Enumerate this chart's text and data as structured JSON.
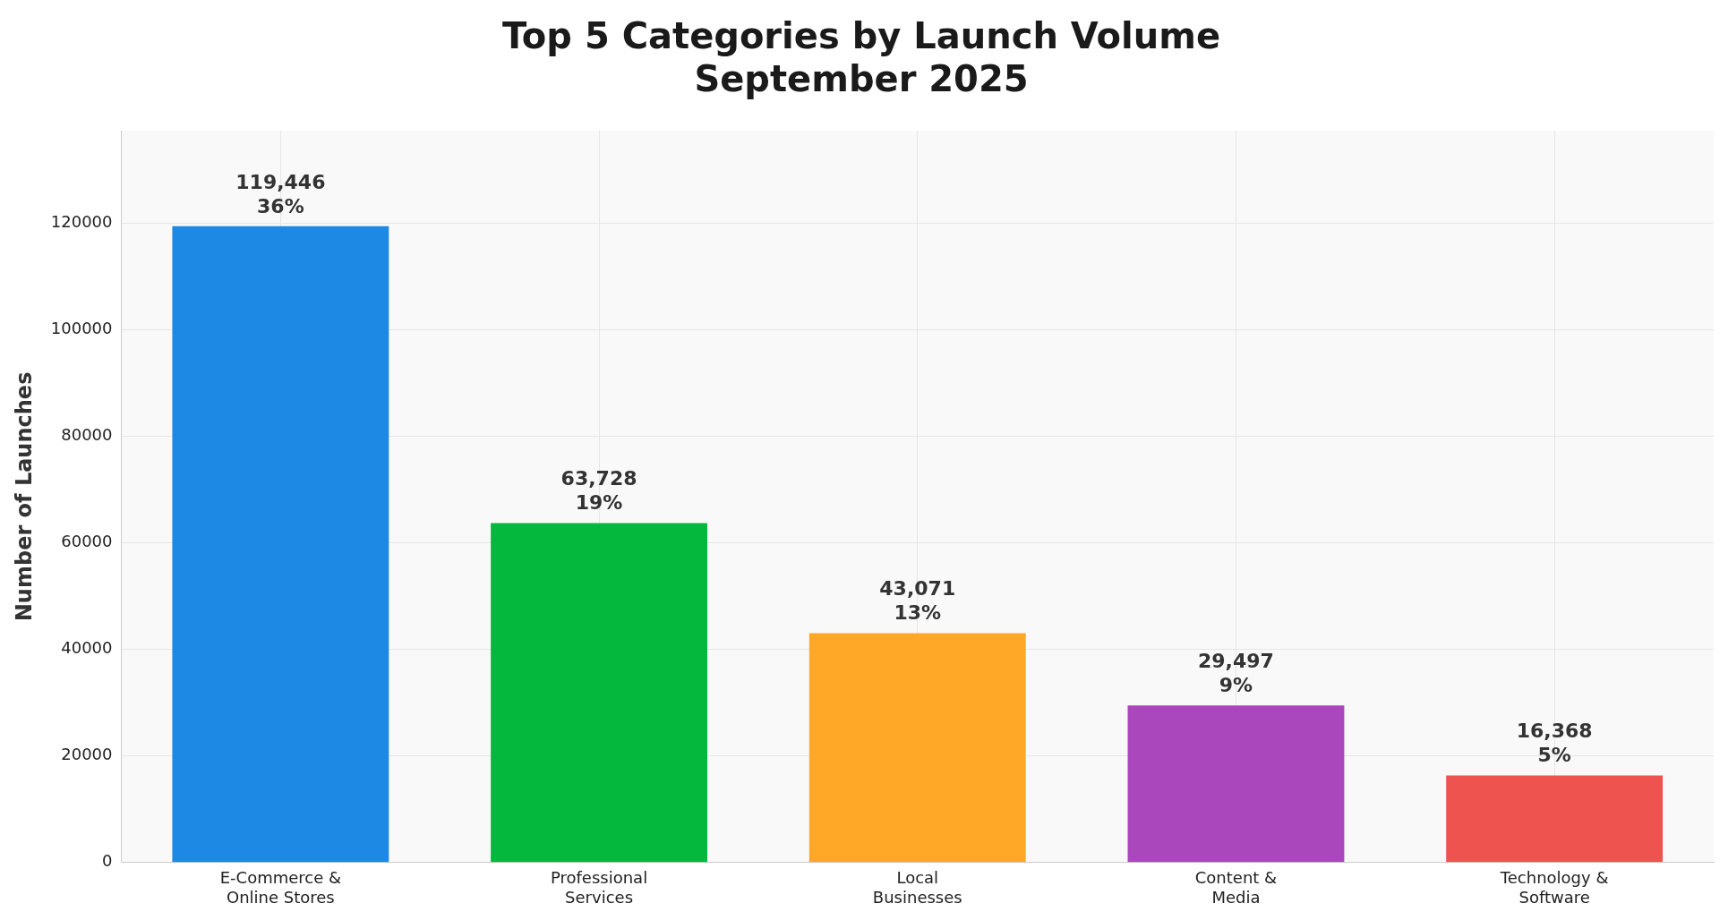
{
  "chart_data": {
    "type": "bar",
    "title": "Top 5 Categories by Launch Volume\nSeptember 2025",
    "ylabel": "Number of Launches",
    "categories": [
      "E-Commerce &\nOnline Stores",
      "Professional\nServices",
      "Local\nBusinesses",
      "Content &\nMedia",
      "Technology &\nSoftware"
    ],
    "values": [
      119446,
      63728,
      43071,
      29497,
      16368
    ],
    "colors": [
      "#1e88e5",
      "#04b83e",
      "#ffa726",
      "#ab47bc",
      "#ef5350"
    ],
    "value_labels": [
      "119,446\n36%",
      "63,728\n19%",
      "43,071\n13%",
      "29,497\n9%",
      "16,368\n5%"
    ],
    "ylim": [
      0,
      137400
    ],
    "yticks": [
      0,
      20000,
      40000,
      60000,
      80000,
      100000,
      120000
    ],
    "grid": true,
    "legend": false
  }
}
